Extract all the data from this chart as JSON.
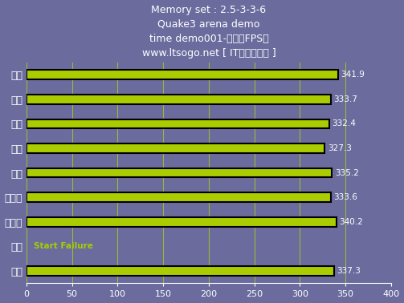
{
  "title_lines": [
    "Memory set : 2.5-3-3-6",
    "Quake3 arena demo",
    "time demo001-帧率（FPS）",
    "www.ltsogo.net [ IT搜购评测室 ]"
  ],
  "categories": [
    "勤茂",
    "金邦",
    "超胜",
    "现代",
    "宇瞻",
    "金士顿",
    "金士泰",
    "光电",
    "威刘"
  ],
  "values": [
    341.9,
    333.7,
    332.4,
    327.3,
    335.2,
    333.6,
    340.2,
    null,
    337.3
  ],
  "failure_label": "Start Failure",
  "failure_index": 7,
  "bar_color": "#AACC00",
  "bar_edge_color": "#000000",
  "bar_edge_width": 1.5,
  "background_color": "#6B6B9E",
  "text_color": "#FFFFFF",
  "grid_color": "#99BB33",
  "xlim": [
    0,
    400
  ],
  "xticks": [
    0,
    50,
    100,
    150,
    200,
    250,
    300,
    350,
    400
  ],
  "bar_height": 0.38,
  "value_fontsize": 7.5,
  "label_fontsize": 9,
  "title_fontsize": 9
}
